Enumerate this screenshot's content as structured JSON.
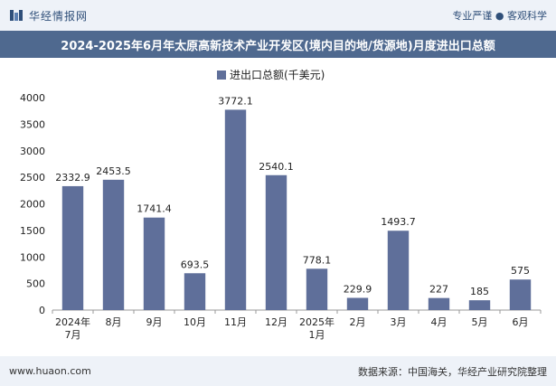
{
  "header": {
    "brand": "华经情报网",
    "slogan": "专业严谨 ● 客观科学"
  },
  "footer": {
    "site": "www.huaon.com",
    "source": "数据来源：中国海关，华经产业研究院整理"
  },
  "chart_data": {
    "type": "bar",
    "title": "2024-2025年6月年太原高新技术产业开发区(境内目的地/货源地)月度进出口总额",
    "legend": "进出口总额(千美元)",
    "legend_position": "top-center",
    "categories": [
      "2024年\n7月",
      "8月",
      "9月",
      "10月",
      "11月",
      "12月",
      "2025年\n1月",
      "2月",
      "3月",
      "4月",
      "5月",
      "6月"
    ],
    "series": [
      {
        "name": "进出口总额(千美元)",
        "values": [
          2332.9,
          2453.5,
          1741.4,
          693.5,
          3772.1,
          2540.1,
          778.1,
          229.9,
          1493.7,
          227,
          185,
          575
        ],
        "labels": [
          "2332.9",
          "2453.5",
          "1741.4",
          "693.5",
          "3772.1",
          "2540.1",
          "778.1",
          "229.9",
          "1493.7",
          "227",
          "185",
          "575"
        ]
      }
    ],
    "ylim": [
      0,
      4000
    ],
    "yticks": [
      0,
      500,
      1000,
      1500,
      2000,
      2500,
      3000,
      3500,
      4000
    ],
    "grid": false,
    "colors": {
      "bar": "#5f6f9a",
      "axis": "#999999",
      "text": "#222222"
    }
  }
}
